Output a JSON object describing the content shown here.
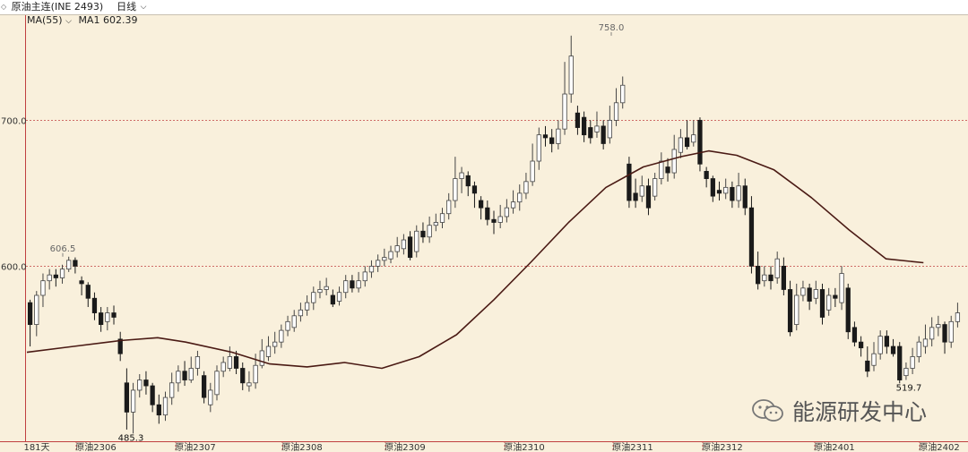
{
  "header": {
    "symbol": "原油主连(INE 2493)",
    "period": "日线",
    "icon": "chevron-down-icon"
  },
  "indicator": {
    "label": "MA(55)",
    "value_label": "MA1 602.39"
  },
  "watermark": "能源研发中心",
  "chart_data": {
    "type": "candlestick",
    "title": "",
    "ylim": [
      480,
      772
    ],
    "yticks": [
      {
        "value": 600,
        "label": "600.0"
      },
      {
        "value": 700,
        "label": "700.0"
      }
    ],
    "grid": "dashed horizontal at tick levels",
    "colors": {
      "up": "#ffffff",
      "up_stroke": "#444444",
      "down": "#1a1a1a",
      "ma": "#4a1a14",
      "grid": "#c04040"
    },
    "xticks": [
      "181天",
      "原油2306",
      "原油2307",
      "原油2308",
      "原油2309",
      "原油2310",
      "原油2311",
      "原油2312",
      "原油2401",
      "原油2402"
    ],
    "annotations": [
      {
        "label": "606.5",
        "value": 606.5
      },
      {
        "label": "758.0",
        "value": 758.0
      },
      {
        "label": "485.3",
        "value": 485.3
      },
      {
        "label": "519.7",
        "value": 519.7
      }
    ],
    "candles": [
      [
        575,
        560,
        577,
        545
      ],
      [
        560,
        580,
        583,
        552
      ],
      [
        580,
        590,
        595,
        572
      ],
      [
        590,
        594,
        598,
        584
      ],
      [
        594,
        592,
        598,
        586
      ],
      [
        592,
        598,
        601,
        588
      ],
      [
        598,
        604,
        606.5,
        596
      ],
      [
        604,
        600,
        606,
        595
      ],
      [
        590,
        588,
        593,
        580
      ],
      [
        587,
        578,
        589,
        572
      ],
      [
        578,
        568,
        582,
        563
      ],
      [
        568,
        560,
        572,
        555
      ],
      [
        562,
        568,
        572,
        556
      ],
      [
        568,
        565,
        573,
        560
      ],
      [
        550,
        540,
        555,
        535
      ],
      [
        520,
        500,
        530,
        488
      ],
      [
        500,
        515,
        520,
        485.3
      ],
      [
        515,
        522,
        526,
        510
      ],
      [
        522,
        518,
        528,
        512
      ],
      [
        518,
        505,
        520,
        500
      ],
      [
        505,
        498,
        512,
        492
      ],
      [
        498,
        510,
        514,
        494
      ],
      [
        510,
        520,
        527,
        505
      ],
      [
        520,
        528,
        532,
        514
      ],
      [
        528,
        522,
        535,
        518
      ],
      [
        522,
        530,
        538,
        520
      ],
      [
        530,
        538,
        542,
        525
      ],
      [
        525,
        510,
        528,
        506
      ],
      [
        505,
        515,
        520,
        500
      ],
      [
        512,
        528,
        532,
        508
      ],
      [
        528,
        534,
        538,
        524
      ],
      [
        530,
        538,
        545,
        528
      ],
      [
        538,
        530,
        542,
        526
      ],
      [
        530,
        520,
        534,
        515
      ],
      [
        518,
        520,
        528,
        514
      ],
      [
        520,
        532,
        540,
        516
      ],
      [
        532,
        542,
        550,
        530
      ],
      [
        538,
        545,
        552,
        535
      ],
      [
        545,
        548,
        555,
        540
      ],
      [
        548,
        556,
        560,
        544
      ],
      [
        556,
        562,
        566,
        552
      ],
      [
        558,
        566,
        570,
        555
      ],
      [
        566,
        570,
        575,
        562
      ],
      [
        570,
        575,
        580,
        566
      ],
      [
        575,
        582,
        586,
        570
      ],
      [
        582,
        584,
        590,
        578
      ],
      [
        584,
        586,
        592,
        580
      ],
      [
        580,
        574,
        584,
        572
      ],
      [
        576,
        582,
        586,
        573
      ],
      [
        582,
        590,
        594,
        578
      ],
      [
        590,
        585,
        594,
        582
      ],
      [
        585,
        590,
        596,
        582
      ],
      [
        590,
        596,
        600,
        586
      ],
      [
        596,
        600,
        604,
        592
      ],
      [
        600,
        604,
        608,
        596
      ],
      [
        604,
        606,
        612,
        600
      ],
      [
        605,
        610,
        614,
        602
      ],
      [
        610,
        614,
        620,
        606
      ],
      [
        612,
        618,
        622,
        608
      ],
      [
        620,
        606,
        624,
        604
      ],
      [
        610,
        624,
        628,
        606
      ],
      [
        624,
        620,
        630,
        616
      ],
      [
        620,
        628,
        634,
        616
      ],
      [
        628,
        630,
        636,
        624
      ],
      [
        630,
        636,
        640,
        626
      ],
      [
        636,
        645,
        650,
        632
      ],
      [
        645,
        660,
        675,
        640
      ],
      [
        660,
        664,
        668,
        650
      ],
      [
        662,
        655,
        665,
        648
      ],
      [
        655,
        650,
        658,
        640
      ],
      [
        645,
        640,
        648,
        632
      ],
      [
        640,
        632,
        645,
        628
      ],
      [
        632,
        630,
        638,
        622
      ],
      [
        630,
        634,
        642,
        626
      ],
      [
        634,
        640,
        646,
        630
      ],
      [
        640,
        644,
        652,
        636
      ],
      [
        644,
        650,
        656,
        638
      ],
      [
        650,
        658,
        664,
        646
      ],
      [
        658,
        672,
        684,
        655
      ],
      [
        672,
        690,
        695,
        666
      ],
      [
        690,
        688,
        696,
        682
      ],
      [
        688,
        684,
        694,
        678
      ],
      [
        684,
        694,
        700,
        680
      ],
      [
        694,
        718,
        740,
        690
      ],
      [
        718,
        744,
        758,
        712
      ],
      [
        705,
        695,
        710,
        690
      ],
      [
        702,
        690,
        706,
        685
      ],
      [
        695,
        688,
        700,
        684
      ],
      [
        692,
        696,
        706,
        688
      ],
      [
        696,
        684,
        700,
        680
      ],
      [
        688,
        700,
        710,
        684
      ],
      [
        700,
        712,
        722,
        696
      ],
      [
        712,
        724,
        730,
        708
      ],
      [
        670,
        645,
        675,
        640
      ],
      [
        650,
        645,
        660,
        640
      ],
      [
        648,
        655,
        662,
        644
      ],
      [
        655,
        640,
        660,
        635
      ],
      [
        648,
        660,
        664,
        645
      ],
      [
        660,
        672,
        678,
        656
      ],
      [
        668,
        664,
        674,
        658
      ],
      [
        664,
        680,
        690,
        660
      ],
      [
        678,
        688,
        694,
        674
      ],
      [
        688,
        682,
        700,
        680
      ],
      [
        685,
        690,
        700,
        682
      ],
      [
        700,
        670,
        702,
        665
      ],
      [
        665,
        660,
        668,
        654
      ],
      [
        660,
        648,
        662,
        644
      ],
      [
        652,
        650,
        658,
        645
      ],
      [
        650,
        654,
        660,
        646
      ],
      [
        654,
        645,
        658,
        640
      ],
      [
        645,
        655,
        664,
        640
      ],
      [
        655,
        640,
        660,
        635
      ],
      [
        640,
        600,
        648,
        595
      ],
      [
        600,
        588,
        610,
        584
      ],
      [
        590,
        594,
        600,
        586
      ],
      [
        594,
        590,
        600,
        584
      ],
      [
        592,
        605,
        610,
        588
      ],
      [
        600,
        584,
        606,
        580
      ],
      [
        584,
        555,
        590,
        552
      ],
      [
        560,
        580,
        588,
        556
      ],
      [
        580,
        585,
        590,
        576
      ],
      [
        585,
        576,
        588,
        570
      ],
      [
        578,
        584,
        590,
        574
      ],
      [
        584,
        565,
        588,
        560
      ],
      [
        570,
        580,
        585,
        566
      ],
      [
        580,
        578,
        585,
        572
      ],
      [
        575,
        595,
        600,
        570
      ],
      [
        585,
        555,
        588,
        550
      ],
      [
        558,
        548,
        562,
        545
      ],
      [
        548,
        544,
        552,
        538
      ],
      [
        535,
        528,
        545,
        524
      ],
      [
        532,
        540,
        548,
        528
      ],
      [
        540,
        552,
        556,
        536
      ],
      [
        552,
        545,
        556,
        540
      ],
      [
        545,
        540,
        550,
        538
      ],
      [
        545,
        522,
        548,
        519.7
      ],
      [
        525,
        530,
        534,
        522
      ],
      [
        530,
        538,
        544,
        526
      ],
      [
        538,
        548,
        552,
        534
      ],
      [
        545,
        550,
        560,
        540
      ],
      [
        550,
        558,
        565,
        545
      ],
      [
        558,
        560,
        566,
        552
      ],
      [
        560,
        548,
        562,
        540
      ],
      [
        548,
        562,
        566,
        544
      ],
      [
        562,
        568,
        575,
        558
      ]
    ],
    "ma55": [
      [
        0,
        541
      ],
      [
        0.05,
        545
      ],
      [
        0.1,
        549
      ],
      [
        0.14,
        551
      ],
      [
        0.17,
        548
      ],
      [
        0.22,
        541
      ],
      [
        0.26,
        533
      ],
      [
        0.3,
        531
      ],
      [
        0.34,
        534
      ],
      [
        0.38,
        530
      ],
      [
        0.42,
        538
      ],
      [
        0.46,
        553
      ],
      [
        0.5,
        577
      ],
      [
        0.54,
        603
      ],
      [
        0.58,
        630
      ],
      [
        0.62,
        654
      ],
      [
        0.66,
        668
      ],
      [
        0.7,
        675
      ],
      [
        0.73,
        679
      ],
      [
        0.76,
        676
      ],
      [
        0.8,
        666
      ],
      [
        0.84,
        647
      ],
      [
        0.88,
        625
      ],
      [
        0.92,
        605
      ],
      [
        0.96,
        602.39
      ]
    ]
  }
}
